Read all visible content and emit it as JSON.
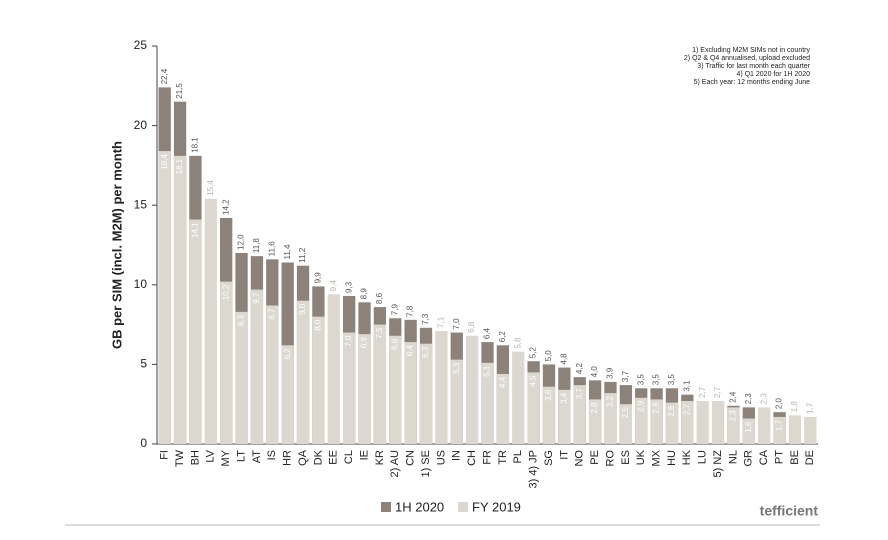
{
  "chart_data": {
    "type": "bar",
    "y_label": "GB per SIM (incl. M2M) per month",
    "annotations": [
      "1) Excluding M2M SIMs not in country",
      "2) Q2 & Q4 annualised, upload excluded",
      "3) Traffic for last month each quarter",
      "4) Q1 2020 for 1H 2020",
      "5) Each year: 12 months ending June"
    ],
    "brand": "tefficient",
    "categories": [
      "FI",
      "TW",
      "BH",
      "LV",
      "MY",
      "LT",
      "AT",
      "IS",
      "HR",
      "QA",
      "DK",
      "EE",
      "CL",
      "IE",
      "KR",
      "2) AU",
      "CN",
      "1) SE",
      "US",
      "IN",
      "CH",
      "FR",
      "TR",
      "PL",
      "3) 4) JP",
      "SG",
      "IT",
      "NO",
      "PE",
      "RO",
      "ES",
      "UK",
      "MX",
      "HU",
      "HK",
      "LU",
      "5) NZ",
      "NL",
      "GR",
      "CA",
      "PT",
      "BE",
      "DE"
    ],
    "series": [
      {
        "name": "1H 2020",
        "color": "#8c8279",
        "values": [
          22.4,
          21.5,
          18.1,
          null,
          14.2,
          12.0,
          11.8,
          11.6,
          11.4,
          11.2,
          9.9,
          null,
          9.3,
          8.9,
          8.6,
          7.9,
          7.8,
          7.3,
          null,
          7.0,
          null,
          6.4,
          6.2,
          null,
          5.2,
          5.0,
          4.8,
          4.2,
          4.0,
          3.9,
          3.7,
          3.5,
          3.5,
          3.5,
          3.1,
          null,
          null,
          2.4,
          2.3,
          null,
          2.0,
          null,
          null
        ],
        "value_labels": [
          "22,4",
          "21,5",
          "18,1",
          null,
          "14,2",
          "12,0",
          "11,8",
          "11,6",
          "11,4",
          "11,2",
          "9,9",
          null,
          "9,3",
          "8,9",
          "8,6",
          "7,9",
          "7,8",
          "7,3",
          null,
          "7,0",
          null,
          "6,4",
          "6,2",
          null,
          "5,2",
          "5,0",
          "4,8",
          "4,2",
          "4,0",
          "3,9",
          "3,7",
          "3,5",
          "3,5",
          "3,5",
          "3,1",
          null,
          null,
          "2,4",
          "2,3",
          null,
          "2,0",
          null,
          null
        ]
      },
      {
        "name": "FY 2019",
        "color": "#ddd8cf",
        "values": [
          18.4,
          18.1,
          14.1,
          15.4,
          10.2,
          8.3,
          9.7,
          8.7,
          6.2,
          9.0,
          8.0,
          9.4,
          7.0,
          6.9,
          7.5,
          6.8,
          6.4,
          6.3,
          7.1,
          5.3,
          6.8,
          5.1,
          4.4,
          5.8,
          4.5,
          3.6,
          3.4,
          3.7,
          2.8,
          3.2,
          2.5,
          2.9,
          2.8,
          2.6,
          2.7,
          2.7,
          2.7,
          2.3,
          1.6,
          2.3,
          1.7,
          1.8,
          1.7
        ],
        "value_labels": [
          "18,4",
          "18,1",
          "14,1",
          "15,4",
          "10,2",
          "8,3",
          "9,7",
          "8,7",
          "6,2",
          "9,0",
          "8,0",
          "9,4",
          "7,0",
          "6,9",
          "7,5",
          "6,8",
          "6,4",
          "6,3",
          "7,1",
          "5,3",
          "6,8",
          "5,1",
          "4,4",
          "5,8",
          "4,5",
          "3,6",
          "3,4",
          "3,7",
          "2,8",
          "3,2",
          "2,5",
          "2,9",
          "2,8",
          "2,6",
          "2,7",
          "2,7",
          "2,7",
          "2,3",
          "1,6",
          "2,3",
          "1,7",
          "1,8",
          "1,7"
        ]
      }
    ],
    "ylim": [
      0,
      25
    ],
    "yticks": [
      0,
      5,
      10,
      15,
      20,
      25
    ]
  }
}
